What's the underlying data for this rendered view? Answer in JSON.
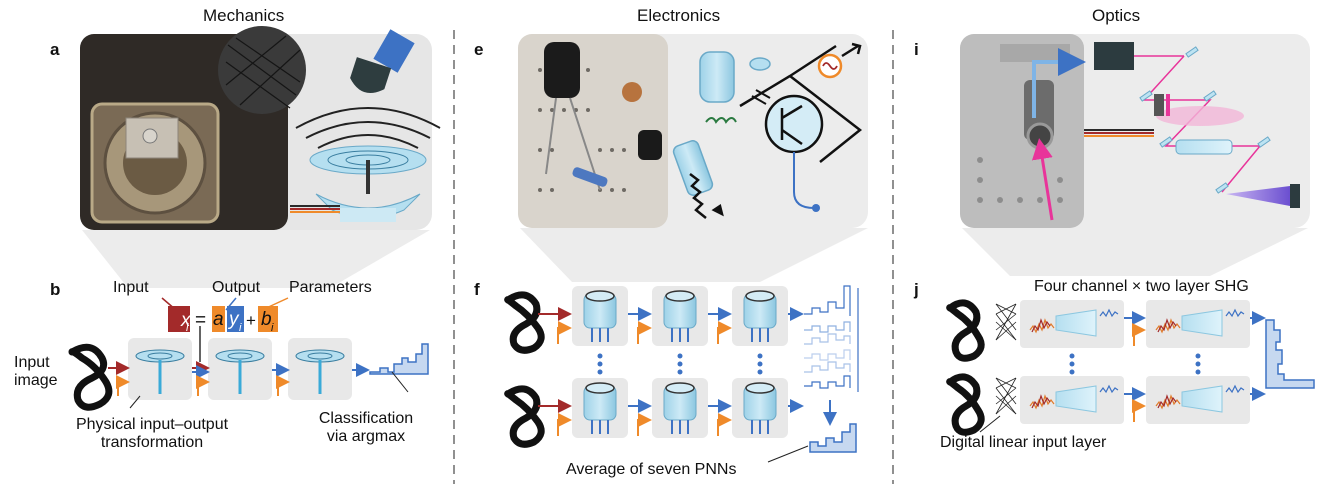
{
  "columns": {
    "mechanics": "Mechanics",
    "electronics": "Electronics",
    "optics": "Optics"
  },
  "panels": {
    "a": "a",
    "b": "b",
    "e": "e",
    "f": "f",
    "i": "i",
    "j": "j"
  },
  "mechanics": {
    "input_label": "Input",
    "output_label": "Output",
    "parameters_label": "Parameters",
    "eq_x": "x",
    "eq_i": "i",
    "eq_equals": "=",
    "eq_a": "a",
    "eq_y": "y",
    "eq_plus": "+",
    "eq_b": "b",
    "input_image_line1": "Input",
    "input_image_line2": "image",
    "physical_line1": "Physical input–output",
    "physical_line2": "transformation",
    "classification_line1": "Classification",
    "classification_line2": "via argmax"
  },
  "electronics": {
    "caption": "Average of seven PNNs"
  },
  "optics": {
    "caption_top": "Four channel × two layer SHG",
    "caption_bottom": "Digital linear input layer"
  },
  "colors": {
    "input_red": "#a32a2a",
    "output_blue": "#3d72c4",
    "param_orange": "#ef8a2a",
    "panel_grey": "#e8e8e8",
    "device_blue": "#a8d8ec",
    "laser_pink": "#e8349a"
  }
}
